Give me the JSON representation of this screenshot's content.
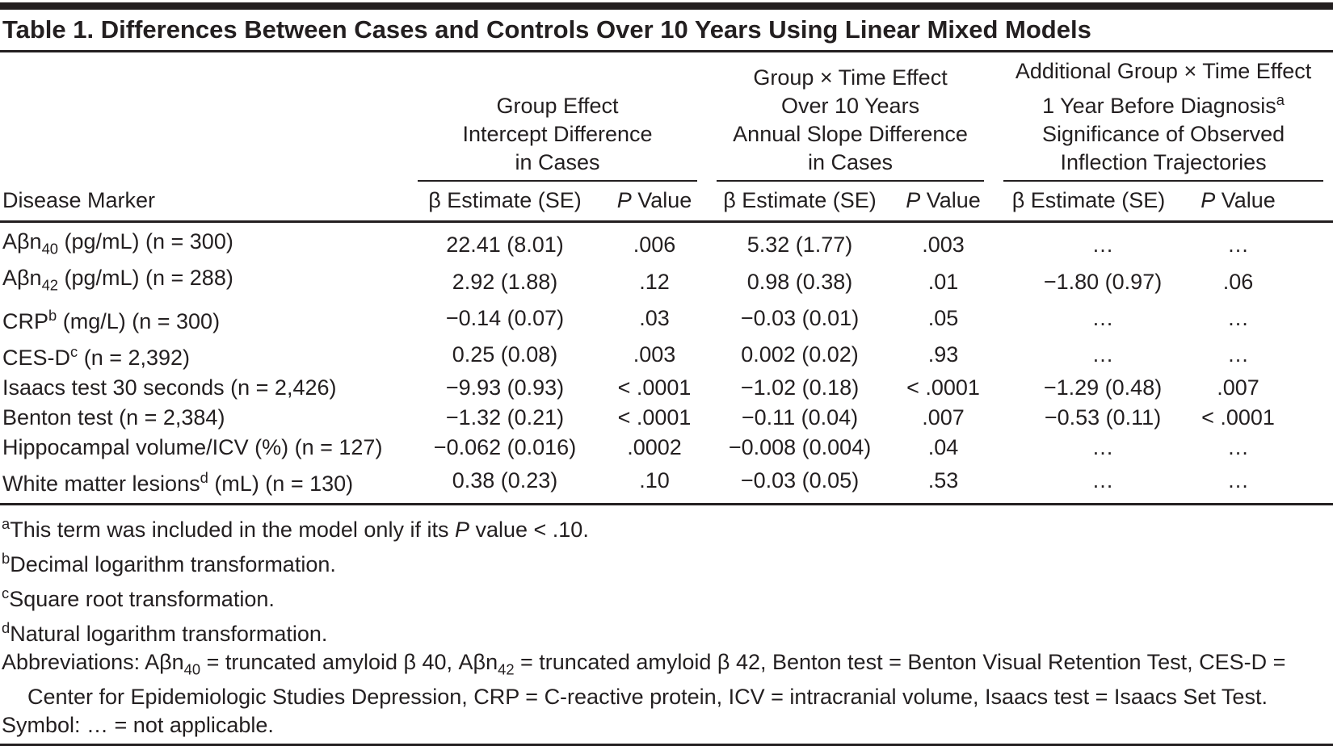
{
  "colors": {
    "text": "#231f20",
    "rule": "#231f20",
    "background": "#ffffff"
  },
  "title": "Table 1. Differences Between Cases and Controls Over 10 Years Using Linear Mixed Models",
  "table": {
    "marker_header": "Disease Marker",
    "groups": [
      {
        "title_html": "Group Effect<br>Intercept Difference<br>in Cases"
      },
      {
        "title_html": "Group × Time Effect<br>Over 10 Years<br>Annual Slope Difference<br>in Cases"
      },
      {
        "title_html": "Additional Group × Time Effect<br>1 Year Before Diagnosis<sup>a</sup><br>Significance of Observed<br>Inflection Trajectories"
      }
    ],
    "subheaders": {
      "beta": "β Estimate (SE)",
      "p_html": "<i>P</i> Value"
    },
    "rows": [
      {
        "marker_html": "Aβn<sub>40</sub> (pg/mL) (n = 300)",
        "cells": [
          "22.41 (8.01)",
          ".006",
          "5.32 (1.77)",
          ".003",
          "…",
          "…"
        ]
      },
      {
        "marker_html": "Aβn<sub>42</sub> (pg/mL) (n = 288)",
        "cells": [
          "2.92 (1.88)",
          ".12",
          "0.98 (0.38)",
          ".01",
          "−1.80 (0.97)",
          ".06"
        ]
      },
      {
        "marker_html": "CRP<sup>b</sup> (mg/L) (n = 300)",
        "cells": [
          "−0.14 (0.07)",
          ".03",
          "−0.03 (0.01)",
          ".05",
          "…",
          "…"
        ]
      },
      {
        "marker_html": "CES-D<sup>c</sup> (n = 2,392)",
        "cells": [
          "0.25 (0.08)",
          ".003",
          "0.002 (0.02)",
          ".93",
          "…",
          "…"
        ]
      },
      {
        "marker_html": "Isaacs test 30 seconds (n = 2,426)",
        "cells": [
          "−9.93 (0.93)",
          "< .0001",
          "−1.02 (0.18)",
          "< .0001",
          "−1.29 (0.48)",
          ".007"
        ]
      },
      {
        "marker_html": "Benton test (n = 2,384)",
        "cells": [
          "−1.32 (0.21)",
          "< .0001",
          "−0.11 (0.04)",
          ".007",
          "−0.53 (0.11)",
          "< .0001"
        ]
      },
      {
        "marker_html": "Hippocampal volume/ICV (%) (n = 127)",
        "cells": [
          "−0.062 (0.016)",
          ".0002",
          "−0.008 (0.004)",
          ".04",
          "…",
          "…"
        ]
      },
      {
        "marker_html": "White matter lesions<sup>d</sup> (mL) (n = 130)",
        "cells": [
          "0.38 (0.23)",
          ".10",
          "−0.03 (0.05)",
          ".53",
          "…",
          "…"
        ]
      }
    ]
  },
  "footnotes": [
    "<sup>a</sup>This term was included in the model only if its <i>P</i> value &lt; .10.",
    "<sup>b</sup>Decimal logarithm transformation.",
    "<sup>c</sup>Square root transformation.",
    "<sup>d</sup>Natural logarithm transformation.",
    "Abbreviations: Aβn<sub>40</sub> = truncated amyloid β 40, Aβn<sub>42</sub> = truncated amyloid β 42, Benton test = Benton Visual Retention Test, CES-D = Center for Epidemiologic Studies Depression, CRP = C-reactive protein, ICV = intracranial volume, Isaacs test = Isaacs Set Test.",
    "Symbol: … = not applicable."
  ]
}
